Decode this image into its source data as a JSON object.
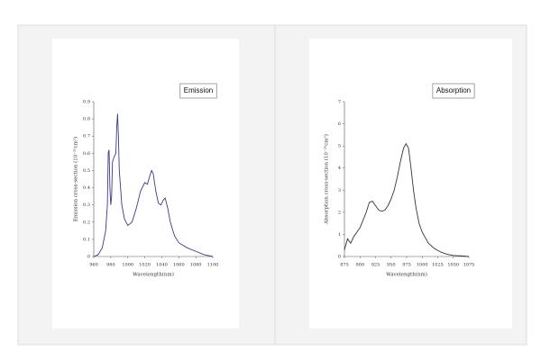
{
  "chart_data": [
    {
      "type": "line",
      "xlabel": "Wavelength(nm)",
      "ylabel": "Emission cross-section (10⁻²⁰cm²)",
      "x": [
        960,
        965,
        970,
        974,
        976,
        977,
        978,
        979,
        980,
        981,
        982,
        984,
        986,
        987,
        988,
        989,
        990,
        993,
        996,
        1000,
        1005,
        1010,
        1015,
        1020,
        1023,
        1026,
        1028,
        1030,
        1033,
        1036,
        1039,
        1042,
        1044,
        1047,
        1050,
        1055,
        1060,
        1070,
        1080,
        1090,
        1100
      ],
      "series": [
        {
          "name": "Emission",
          "color": "#3b3b86",
          "values": [
            0,
            0.01,
            0.05,
            0.15,
            0.3,
            0.6,
            0.62,
            0.4,
            0.3,
            0.35,
            0.55,
            0.58,
            0.6,
            0.75,
            0.83,
            0.7,
            0.5,
            0.3,
            0.22,
            0.18,
            0.2,
            0.28,
            0.38,
            0.43,
            0.42,
            0.47,
            0.5,
            0.48,
            0.38,
            0.31,
            0.3,
            0.33,
            0.34,
            0.28,
            0.2,
            0.12,
            0.08,
            0.05,
            0.03,
            0.01,
            0
          ]
        }
      ],
      "xlim": [
        960,
        1100
      ],
      "xticks": [
        960,
        980,
        1000,
        1020,
        1040,
        1060,
        1080,
        1100
      ],
      "ylim": [
        0,
        0.9
      ],
      "yticks": [
        0,
        0.1,
        0.2,
        0.3,
        0.4,
        0.5,
        0.6,
        0.7,
        0.8,
        0.9
      ]
    },
    {
      "type": "line",
      "xlabel": "Wavelength(nm)",
      "ylabel": "Absorption cross-section (10⁻²⁰cm²)",
      "x": [
        875,
        880,
        885,
        890,
        900,
        910,
        915,
        920,
        925,
        930,
        935,
        940,
        945,
        950,
        955,
        960,
        965,
        970,
        974,
        978,
        982,
        986,
        990,
        995,
        1000,
        1010,
        1020,
        1030,
        1040,
        1050,
        1060,
        1075
      ],
      "series": [
        {
          "name": "Absorption",
          "color": "#333333",
          "values": [
            0.3,
            0.8,
            0.6,
            0.9,
            1.3,
            2.0,
            2.45,
            2.5,
            2.3,
            2.1,
            2.05,
            2.1,
            2.3,
            2.6,
            3.0,
            3.6,
            4.3,
            4.9,
            5.1,
            4.9,
            4.0,
            3.0,
            2.2,
            1.5,
            1.1,
            0.6,
            0.35,
            0.2,
            0.1,
            0.05,
            0.03,
            0
          ]
        }
      ],
      "xlim": [
        875,
        1075
      ],
      "xticks": [
        875,
        900,
        925,
        950,
        975,
        1000,
        1025,
        1050,
        1075
      ],
      "ylim": [
        0,
        7
      ],
      "yticks": [
        0,
        1,
        2,
        3,
        4,
        5,
        6,
        7
      ]
    }
  ]
}
